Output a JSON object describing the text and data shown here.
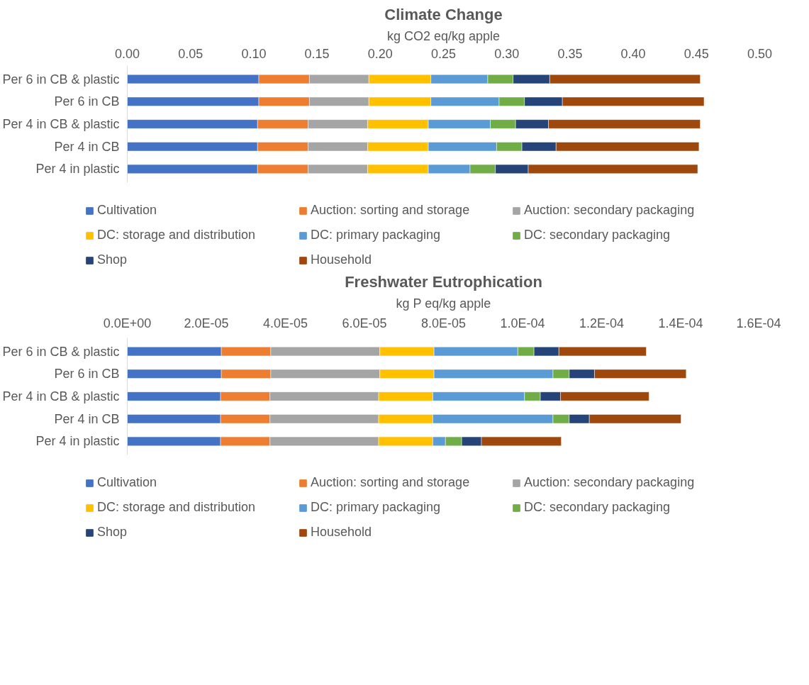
{
  "chart_data": [
    {
      "type": "bar",
      "orientation": "horizontal",
      "stacked": true,
      "title": "Climate Change",
      "xlabel": "kg CO2 eq/kg apple",
      "categories": [
        "Per 6 in CB & plastic",
        "Per 6 in CB",
        "Per 4 in CB & plastic",
        "Per 4 in CB",
        "Per 4 in plastic"
      ],
      "xlim": [
        0,
        0.5
      ],
      "xticks": [
        {
          "value": 0,
          "label": "0.00"
        },
        {
          "value": 0.05,
          "label": "0.05"
        },
        {
          "value": 0.1,
          "label": "0.10"
        },
        {
          "value": 0.15,
          "label": "0.15"
        },
        {
          "value": 0.2,
          "label": "0.20"
        },
        {
          "value": 0.25,
          "label": "0.25"
        },
        {
          "value": 0.3,
          "label": "0.30"
        },
        {
          "value": 0.35,
          "label": "0.35"
        },
        {
          "value": 0.4,
          "label": "0.40"
        },
        {
          "value": 0.45,
          "label": "0.45"
        },
        {
          "value": 0.5,
          "label": "0.50"
        }
      ],
      "grid": false,
      "legend": "bottom",
      "series": [
        {
          "name": "Cultivation",
          "color": "#4472c4",
          "values": [
            0.104,
            0.104,
            0.103,
            0.103,
            0.103
          ]
        },
        {
          "name": "Auction: sorting and storage",
          "color": "#ed7d31",
          "values": [
            0.04,
            0.04,
            0.04,
            0.04,
            0.04
          ]
        },
        {
          "name": "Auction: secondary packaging",
          "color": "#a5a5a5",
          "values": [
            0.047,
            0.047,
            0.047,
            0.047,
            0.047
          ]
        },
        {
          "name": "DC: storage and distribution",
          "color": "#ffc000",
          "values": [
            0.049,
            0.049,
            0.048,
            0.048,
            0.048
          ]
        },
        {
          "name": "DC: primary packaging",
          "color": "#5b9bd5",
          "values": [
            0.045,
            0.054,
            0.049,
            0.054,
            0.033
          ]
        },
        {
          "name": "DC: secondary packaging",
          "color": "#70ad47",
          "values": [
            0.02,
            0.02,
            0.02,
            0.02,
            0.02
          ]
        },
        {
          "name": "Shop",
          "color": "#264478",
          "values": [
            0.029,
            0.03,
            0.026,
            0.027,
            0.026
          ]
        },
        {
          "name": "Household",
          "color": "#9e480e",
          "values": [
            0.119,
            0.112,
            0.12,
            0.113,
            0.134
          ]
        }
      ]
    },
    {
      "type": "bar",
      "orientation": "horizontal",
      "stacked": true,
      "title": "Freshwater Eutrophication",
      "xlabel": "kg P eq/kg apple",
      "categories": [
        "Per 6 in CB & plastic",
        "Per 6 in CB",
        "Per 4 in CB & plastic",
        "Per 4 in CB",
        "Per 4 in plastic"
      ],
      "xlim": [
        0,
        0.00016
      ],
      "xticks": [
        {
          "value": 0,
          "label": "0.0E+00"
        },
        {
          "value": 2e-05,
          "label": "2.0E-05"
        },
        {
          "value": 4e-05,
          "label": "4.0E-05"
        },
        {
          "value": 6e-05,
          "label": "6.0E-05"
        },
        {
          "value": 8e-05,
          "label": "8.0E-05"
        },
        {
          "value": 0.0001,
          "label": "1.0E-04"
        },
        {
          "value": 0.00012,
          "label": "1.2E-04"
        },
        {
          "value": 0.00014,
          "label": "1.4E-04"
        },
        {
          "value": 0.00016,
          "label": "1.6E-04"
        }
      ],
      "grid": false,
      "legend": "bottom",
      "series": [
        {
          "name": "Cultivation",
          "color": "#4472c4",
          "values": [
            2.38e-05,
            2.38e-05,
            2.36e-05,
            2.36e-05,
            2.36e-05
          ]
        },
        {
          "name": "Auction: sorting and storage",
          "color": "#ed7d31",
          "values": [
            1.25e-05,
            1.25e-05,
            1.25e-05,
            1.25e-05,
            1.25e-05
          ]
        },
        {
          "name": "Auction: secondary packaging",
          "color": "#a5a5a5",
          "values": [
            2.76e-05,
            2.76e-05,
            2.75e-05,
            2.75e-05,
            2.75e-05
          ]
        },
        {
          "name": "DC: storage and distribution",
          "color": "#ffc000",
          "values": [
            1.37e-05,
            1.37e-05,
            1.37e-05,
            1.37e-05,
            1.37e-05
          ]
        },
        {
          "name": "DC: primary packaging",
          "color": "#5b9bd5",
          "values": [
            2.12e-05,
            3.01e-05,
            2.32e-05,
            3.04e-05,
            3.2e-06
          ]
        },
        {
          "name": "DC: secondary packaging",
          "color": "#70ad47",
          "values": [
            4.1e-06,
            4.1e-06,
            4e-06,
            4.1e-06,
            4.1e-06
          ]
        },
        {
          "name": "Shop",
          "color": "#264478",
          "values": [
            6.3e-06,
            6.4e-06,
            5.1e-06,
            5.1e-06,
            5e-06
          ]
        },
        {
          "name": "Household",
          "color": "#9e480e",
          "values": [
            2.21e-05,
            2.32e-05,
            2.24e-05,
            2.32e-05,
            2.02e-05
          ]
        }
      ]
    }
  ]
}
